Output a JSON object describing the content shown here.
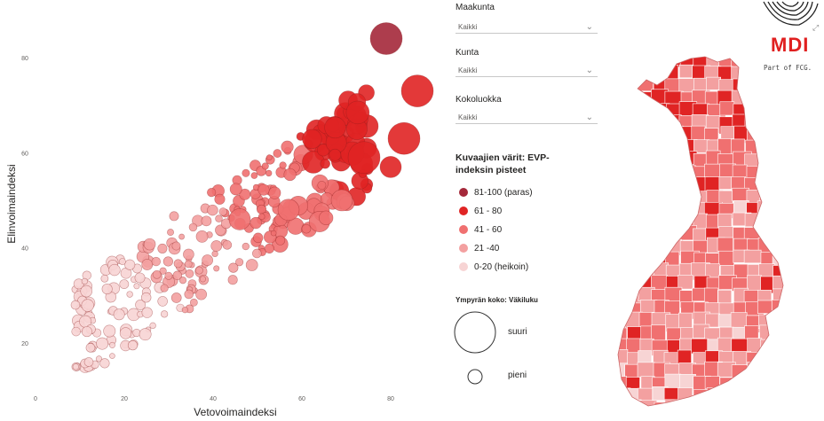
{
  "chart_data": {
    "type": "scatter",
    "xlabel": "Vetovoimaindeksi",
    "ylabel": "Elinvoimaindeksi",
    "xlim": [
      0,
      90
    ],
    "ylim": [
      10,
      90
    ],
    "xticks": [
      "0",
      "20",
      "40",
      "60",
      "80"
    ],
    "yticks": [
      "20",
      "40",
      "60",
      "80"
    ],
    "grid": false,
    "legend_position": "right",
    "color_title": "Kuvaajien värit: EVP-indeksin pisteet",
    "size_title": "Ympyrän koko: Väkiluku",
    "color_classes": [
      {
        "label": "81-100 (paras)",
        "color": "#a4283a"
      },
      {
        "label": "61 - 80",
        "color": "#e02424"
      },
      {
        "label": "41 - 60",
        "color": "#f07070"
      },
      {
        "label": "21 -40",
        "color": "#f3a0a0"
      },
      {
        "label": "0-20 (heikoin)",
        "color": "#f7d4d4"
      }
    ],
    "notable_points": [
      {
        "x": 79,
        "y": 84,
        "size": "large",
        "class": 0
      },
      {
        "x": 86,
        "y": 73,
        "size": "large",
        "class": 1
      },
      {
        "x": 83,
        "y": 63,
        "size": "large",
        "class": 1
      },
      {
        "x": 74,
        "y": 59,
        "size": "large",
        "class": 1
      },
      {
        "x": 80,
        "y": 57,
        "size": "medium",
        "class": 1
      },
      {
        "x": 69,
        "y": 50,
        "size": "medium",
        "class": 2
      },
      {
        "x": 57,
        "y": 48,
        "size": "medium",
        "class": 2
      },
      {
        "x": 46,
        "y": 46,
        "size": "medium",
        "class": 2
      },
      {
        "x": 61,
        "y": 44,
        "size": "small",
        "class": 2
      },
      {
        "x": 9,
        "y": 28,
        "size": "small",
        "class": 4
      },
      {
        "x": 12,
        "y": 16,
        "size": "small",
        "class": 4
      }
    ]
  },
  "filters": [
    {
      "label": "Maakunta",
      "value": "Kaikki"
    },
    {
      "label": "Kunta",
      "value": "Kaikki"
    },
    {
      "label": "Kokoluokka",
      "value": "Kaikki"
    }
  ],
  "size_legend": {
    "large": "suuri",
    "small": "pieni"
  },
  "logo": {
    "brand": "MDI",
    "tagline": "Part of FCG."
  },
  "icons": {
    "chevron": "chevron-down-icon",
    "logo": "fingerprint-logo-icon",
    "expand": "expand-icon"
  }
}
